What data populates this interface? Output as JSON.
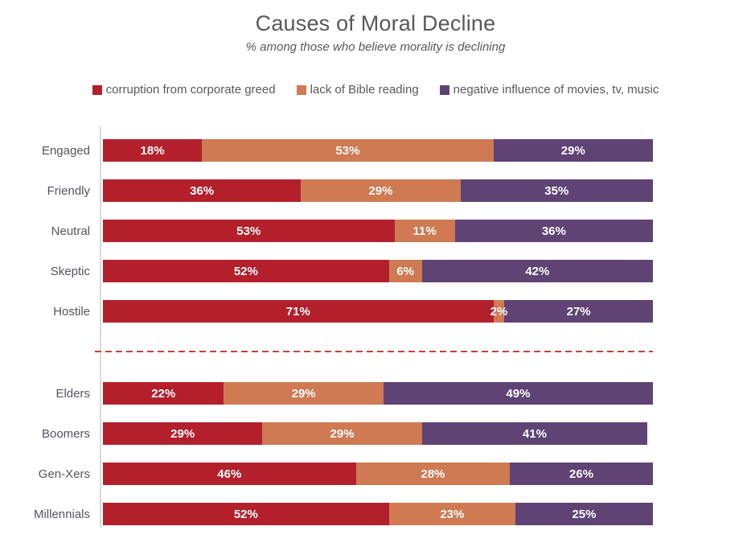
{
  "chart_data": {
    "type": "bar",
    "orientation": "horizontal-stacked",
    "title": "Causes of Moral Decline",
    "subtitle": "% among those who believe morality is declining",
    "unit": "%",
    "xlim": [
      0,
      100
    ],
    "grid": false,
    "legend_position": "top",
    "value_labels": "inside-center-white-bold",
    "categories": [
      "Engaged",
      "Friendly",
      "Neutral",
      "Skeptic",
      "Hostile",
      "Elders",
      "Boomers",
      "Gen-Xers",
      "Millennials"
    ],
    "series": [
      {
        "name": "corruption from corporate greed",
        "color": "#b3202c",
        "values": [
          18,
          36,
          53,
          52,
          71,
          22,
          29,
          46,
          52
        ]
      },
      {
        "name": "lack of Bible reading",
        "color": "#cf7a52",
        "values": [
          53,
          29,
          11,
          6,
          2,
          29,
          29,
          28,
          23
        ]
      },
      {
        "name": "negative influence of movies, tv, music",
        "color": "#5f4374",
        "values": [
          29,
          35,
          36,
          42,
          27,
          49,
          41,
          26,
          25
        ]
      }
    ],
    "divider_after_index": 4,
    "divider_style": "dashed",
    "divider_color": "#c84041",
    "axis_line_color": "#d9d9d9",
    "label_format": "{value}%",
    "colors": {
      "title_text": "#595959",
      "category_text": "#54545f",
      "value_text": "#ffffff"
    }
  }
}
